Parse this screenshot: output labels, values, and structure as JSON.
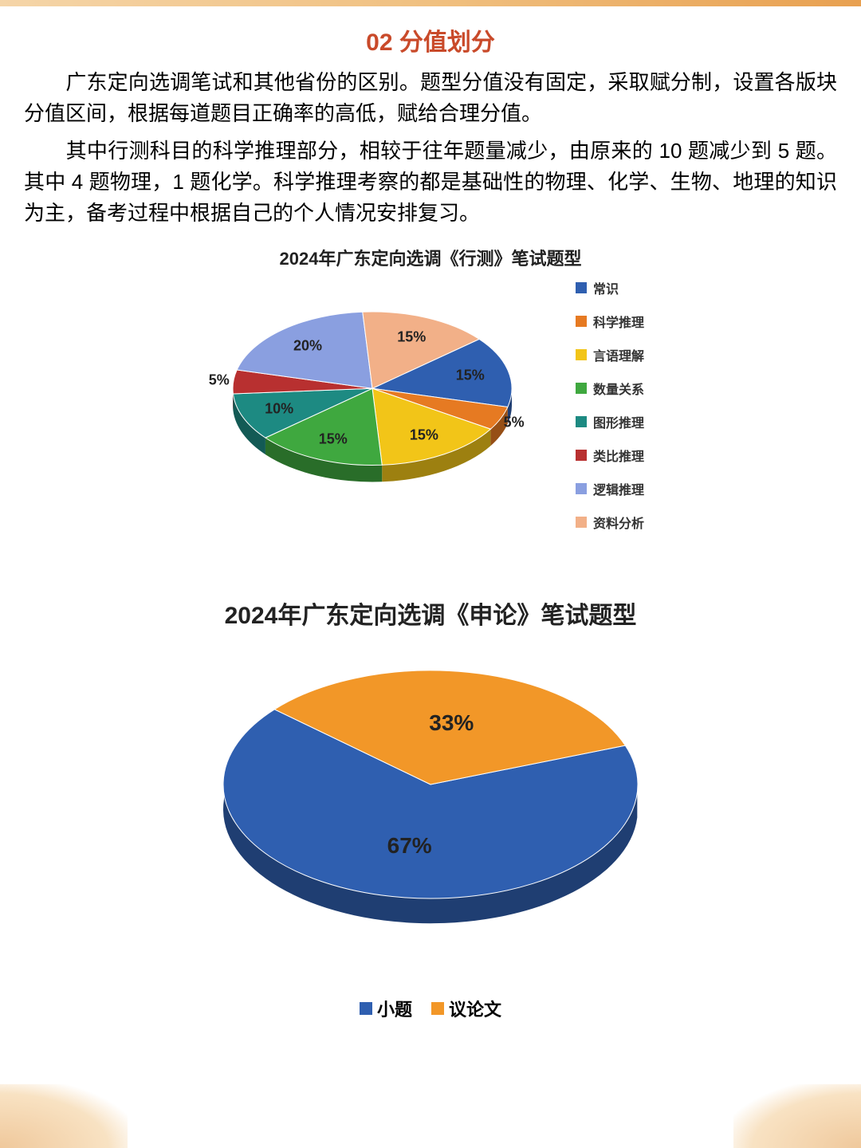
{
  "title": "02 分值划分",
  "para1": "　　广东定向选调笔试和其他省份的区别。题型分值没有固定，采取赋分制，设置各版块分值区间，根据每道题目正确率的高低，赋给合理分值。",
  "para2": "　　其中行测科目的科学推理部分，相较于往年题量减少，由原来的 10 题减少到 5 题。其中 4 题物理，1 题化学。科学推理考察的都是基础性的物理、化学、生物、地理的知识为主，备考过程中根据自己的个人情况安排复习。",
  "chart1": {
    "type": "pie",
    "title": "2024年广东定向选调《行测》笔试题型",
    "title_fontsize": 22,
    "radius": 175,
    "slices": [
      {
        "label": "常识",
        "value": 15,
        "color": "#2f5fb0",
        "pct_text": "15%"
      },
      {
        "label": "科学推理",
        "value": 5,
        "color": "#e67a22",
        "pct_text": "5%"
      },
      {
        "label": "言语理解",
        "value": 15,
        "color": "#f2c518",
        "pct_text": "15%"
      },
      {
        "label": "数量关系",
        "value": 15,
        "color": "#3fa83f",
        "pct_text": "15%"
      },
      {
        "label": "图形推理",
        "value": 10,
        "color": "#1d8a82",
        "pct_text": "10%"
      },
      {
        "label": "类比推理",
        "value": 5,
        "color": "#b83030",
        "pct_text": "5%"
      },
      {
        "label": "逻辑推理",
        "value": 20,
        "color": "#8a9fe0",
        "pct_text": "20%"
      },
      {
        "label": "资料分析",
        "value": 15,
        "color": "#f2b088",
        "pct_text": "15%"
      }
    ],
    "start_angle": -40,
    "legend_swatch_size": 14,
    "legend_fontsize": 16
  },
  "chart2": {
    "type": "pie",
    "title": "2024年广东定向选调《申论》笔试题型",
    "title_fontsize": 30,
    "radius": 260,
    "slices": [
      {
        "label": "小题",
        "value": 67,
        "color": "#2f5fb0",
        "pct_text": "67%"
      },
      {
        "label": "议论文",
        "value": 33,
        "color": "#f29728",
        "pct_text": "33%"
      }
    ],
    "start_angle": -20,
    "legend_swatch_size": 16,
    "legend_fontsize": 22
  }
}
